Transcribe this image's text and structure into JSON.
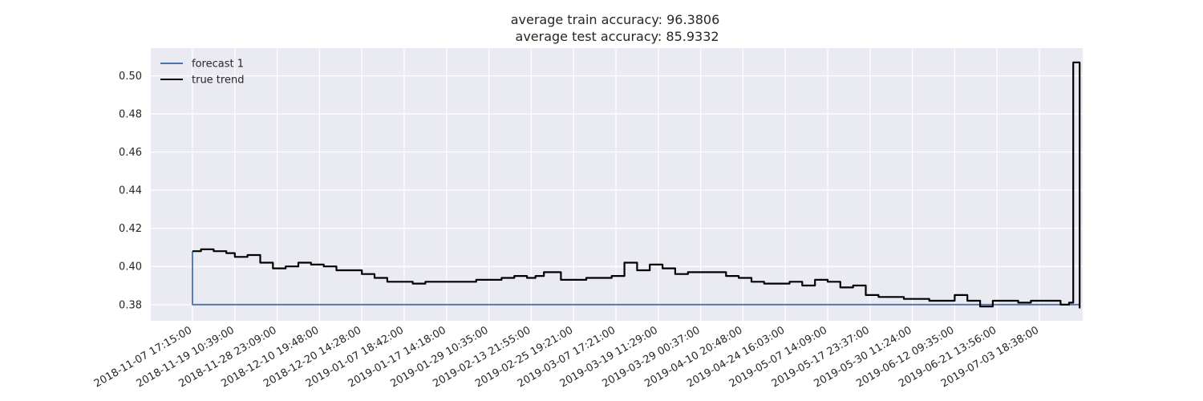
{
  "chart_data": {
    "type": "line",
    "title_lines": [
      "average train accuracy: 96.3806",
      " average test accuracy: 85.9332"
    ],
    "xlabel": "",
    "ylabel": "",
    "ylim": [
      0.3715,
      0.5145
    ],
    "y_ticks": [
      "0.38",
      "0.40",
      "0.42",
      "0.44",
      "0.46",
      "0.48",
      "0.50"
    ],
    "x_tick_labels": [
      "2018-11-07 17:15:00",
      "2018-11-19 10:39:00",
      "2018-11-28 23:09:00",
      "2018-12-10 19:48:00",
      "2018-12-20 14:28:00",
      "2019-01-07 18:42:00",
      "2019-01-17 14:18:00",
      "2019-01-29 10:35:00",
      "2019-02-13 21:55:00",
      "2019-02-25 19:21:00",
      "2019-03-07 17:21:00",
      "2019-03-19 11:29:00",
      "2019-03-29 00:37:00",
      "2019-04-10 20:48:00",
      "2019-04-24 16:03:00",
      "2019-05-07 14:09:00",
      "2019-05-17 23:37:00",
      "2019-05-30 11:24:00",
      "2019-06-12 09:35:00",
      "2019-06-21 13:56:00",
      "2019-07-03 18:38:00"
    ],
    "grid": true,
    "legend_position": "top-left",
    "series": [
      {
        "name": "forecast 1",
        "color": "#4c72b0",
        "x": [
          0,
          0,
          20.95
        ],
        "y": [
          0.408,
          0.38,
          0.38
        ]
      },
      {
        "name": "true trend",
        "color": "#000000",
        "x": [
          0,
          0.2,
          0.5,
          0.8,
          1.0,
          1.3,
          1.6,
          1.9,
          2.2,
          2.5,
          2.8,
          3.1,
          3.4,
          3.7,
          4.0,
          4.3,
          4.6,
          4.9,
          5.2,
          5.5,
          5.8,
          6.1,
          6.4,
          6.7,
          7.0,
          7.3,
          7.6,
          7.9,
          8.1,
          8.3,
          8.7,
          9.0,
          9.3,
          9.6,
          9.9,
          10.2,
          10.5,
          10.8,
          11.1,
          11.4,
          11.7,
          12.0,
          12.3,
          12.6,
          12.9,
          13.2,
          13.5,
          13.8,
          14.1,
          14.4,
          14.7,
          15.0,
          15.3,
          15.6,
          15.9,
          16.2,
          16.5,
          16.8,
          17.1,
          17.4,
          17.7,
          18.0,
          18.3,
          18.6,
          18.9,
          19.2,
          19.5,
          19.8,
          20.1,
          20.5,
          20.7,
          20.8,
          20.9,
          20.95
        ],
        "y": [
          0.408,
          0.409,
          0.408,
          0.407,
          0.405,
          0.406,
          0.402,
          0.399,
          0.4,
          0.402,
          0.401,
          0.4,
          0.398,
          0.398,
          0.396,
          0.394,
          0.392,
          0.392,
          0.391,
          0.392,
          0.392,
          0.392,
          0.392,
          0.393,
          0.393,
          0.394,
          0.395,
          0.394,
          0.395,
          0.397,
          0.393,
          0.393,
          0.394,
          0.394,
          0.395,
          0.402,
          0.398,
          0.401,
          0.399,
          0.396,
          0.397,
          0.397,
          0.397,
          0.395,
          0.394,
          0.392,
          0.391,
          0.391,
          0.392,
          0.39,
          0.393,
          0.392,
          0.389,
          0.39,
          0.385,
          0.384,
          0.384,
          0.383,
          0.383,
          0.382,
          0.382,
          0.385,
          0.382,
          0.379,
          0.382,
          0.382,
          0.381,
          0.382,
          0.382,
          0.38,
          0.381,
          0.507,
          0.507,
          0.378
        ]
      }
    ]
  }
}
